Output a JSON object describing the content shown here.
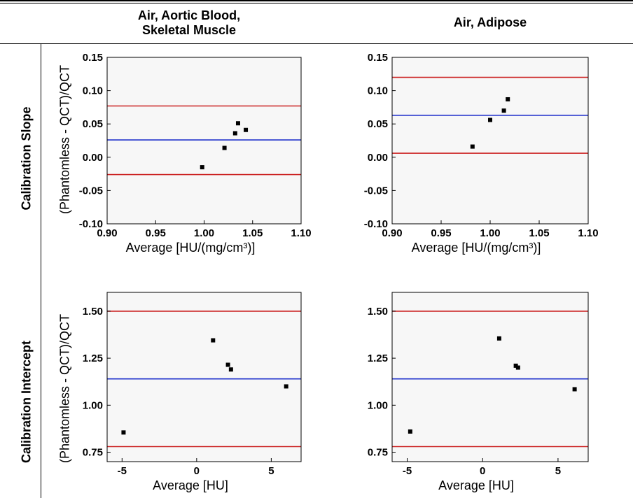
{
  "table": {
    "col_headers": [
      "Air, Aortic Blood,\nSkeletal Muscle",
      "Air, Adipose"
    ],
    "row_headers": [
      "Calibration Slope",
      "Calibration Intercept"
    ]
  },
  "colors": {
    "limits": "#cc2222",
    "mean": "#2233cc",
    "points": "#000000",
    "plot_bg": "#f7f7f7"
  },
  "chart_data": [
    {
      "type": "scatter",
      "title": "",
      "xlabel": "Average [HU/(mg/cm³)]",
      "ylabel": "(Phantomless - QCT)/QCT",
      "xlim": [
        0.9,
        1.1
      ],
      "ylim": [
        -0.1,
        0.15
      ],
      "xticks": [
        "0.90",
        "0.95",
        "1.00",
        "1.05",
        "1.10"
      ],
      "xtick_values": [
        0.9,
        0.95,
        1.0,
        1.05,
        1.1
      ],
      "yticks": [
        "-0.10",
        "-0.05",
        "0.00",
        "0.05",
        "0.10",
        "0.15"
      ],
      "ytick_values": [
        -0.1,
        -0.05,
        0.0,
        0.05,
        0.1,
        0.15
      ],
      "x": [
        0.998,
        1.021,
        1.032,
        1.035,
        1.043
      ],
      "y": [
        -0.015,
        0.014,
        0.036,
        0.051,
        0.041
      ],
      "hlines": {
        "mean": 0.026,
        "upper": 0.077,
        "lower": -0.026
      }
    },
    {
      "type": "scatter",
      "title": "",
      "xlabel": "Average [HU/(mg/cm³)]",
      "ylabel": "",
      "xlim": [
        0.9,
        1.1
      ],
      "ylim": [
        -0.1,
        0.15
      ],
      "xticks": [
        "0.90",
        "0.95",
        "1.00",
        "1.05",
        "1.10"
      ],
      "xtick_values": [
        0.9,
        0.95,
        1.0,
        1.05,
        1.1
      ],
      "yticks": [
        "-0.10",
        "-0.05",
        "0.00",
        "0.05",
        "0.10",
        "0.15"
      ],
      "ytick_values": [
        -0.1,
        -0.05,
        0.0,
        0.05,
        0.1,
        0.15
      ],
      "x": [
        0.982,
        1.0,
        1.014,
        1.018
      ],
      "y": [
        0.016,
        0.056,
        0.07,
        0.087
      ],
      "hlines": {
        "mean": 0.063,
        "upper": 0.12,
        "lower": 0.006
      }
    },
    {
      "type": "scatter",
      "title": "",
      "xlabel": "Average [HU]",
      "ylabel": "(Phantomless - QCT)/QCT",
      "xlim": [
        -6,
        7
      ],
      "ylim": [
        0.7,
        1.6
      ],
      "xticks": [
        "-5",
        "0",
        "5"
      ],
      "xtick_values": [
        -5,
        0,
        5
      ],
      "yticks": [
        "0.75",
        "1.00",
        "1.25",
        "1.50"
      ],
      "ytick_values": [
        0.75,
        1.0,
        1.25,
        1.5
      ],
      "x": [
        -4.9,
        1.1,
        2.1,
        2.3,
        6.0
      ],
      "y": [
        0.855,
        1.345,
        1.215,
        1.19,
        1.1
      ],
      "hlines": {
        "mean": 1.14,
        "upper": 1.5,
        "lower": 0.78
      }
    },
    {
      "type": "scatter",
      "title": "",
      "xlabel": "Average [HU]",
      "ylabel": "",
      "xlim": [
        -6,
        7
      ],
      "ylim": [
        0.7,
        1.6
      ],
      "xticks": [
        "-5",
        "0",
        "5"
      ],
      "xtick_values": [
        -5,
        0,
        5
      ],
      "yticks": [
        "0.75",
        "1.00",
        "1.25",
        "1.50"
      ],
      "ytick_values": [
        0.75,
        1.0,
        1.25,
        1.5
      ],
      "x": [
        -4.8,
        1.1,
        2.2,
        2.35,
        6.1
      ],
      "y": [
        0.86,
        1.355,
        1.21,
        1.2,
        1.085
      ],
      "hlines": {
        "mean": 1.14,
        "upper": 1.5,
        "lower": 0.78
      }
    }
  ]
}
